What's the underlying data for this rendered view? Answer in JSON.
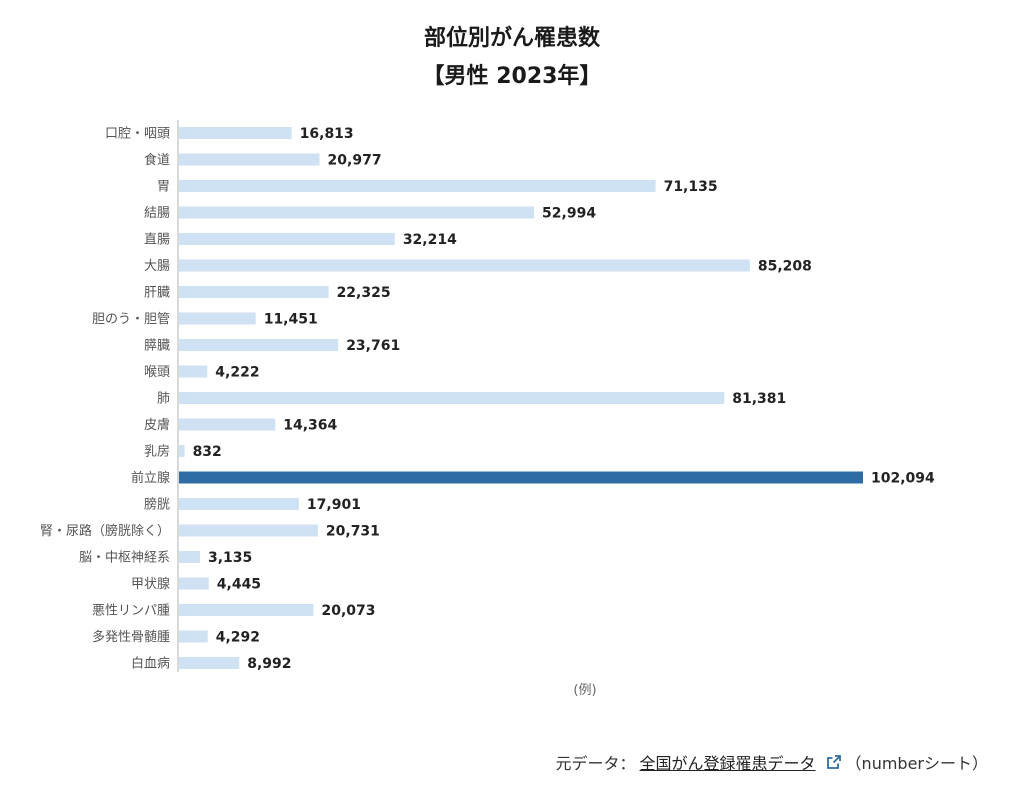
{
  "header": {
    "title_line1": "部位別がん罹患数",
    "title_line2": "【男性 2023年】"
  },
  "legend_note": "(例)",
  "source": {
    "prefix": "元データ：",
    "link_text": "全国がん登録罹患データ",
    "suffix": "（numberシート）"
  },
  "colors": {
    "bar": "#cfe2f3",
    "highlight": "#2e6da4",
    "axis": "#b0b0b0"
  },
  "chart_data": {
    "type": "bar",
    "orientation": "horizontal",
    "title": "部位別がん罹患数 【男性 2023年】",
    "categories": [
      "口腔・咽頭",
      "食道",
      "胃",
      "結腸",
      "直腸",
      "大腸",
      "肝臓",
      "胆のう・胆管",
      "膵臓",
      "喉頭",
      "肺",
      "皮膚",
      "乳房",
      "前立腺",
      "膀胱",
      "腎・尿路（膀胱除く）",
      "脳・中枢神経系",
      "甲状腺",
      "悪性リンパ腫",
      "多発性骨髄腫",
      "白血病"
    ],
    "values": [
      16813,
      20977,
      71135,
      52994,
      32214,
      85208,
      22325,
      11451,
      23761,
      4222,
      81381,
      14364,
      832,
      102094,
      17901,
      20731,
      3135,
      4445,
      20073,
      4292,
      8992
    ],
    "value_labels": [
      "16,813",
      "20,977",
      "71,135",
      "52,994",
      "32,214",
      "85,208",
      "22,325",
      "11,451",
      "23,761",
      "4,222",
      "81,381",
      "14,364",
      "832",
      "102,094",
      "17,901",
      "20,731",
      "3,135",
      "4,445",
      "20,073",
      "4,292",
      "8,992"
    ],
    "highlight": "前立腺",
    "xlim": [
      0,
      102094
    ],
    "grid": false,
    "legend": "none"
  }
}
